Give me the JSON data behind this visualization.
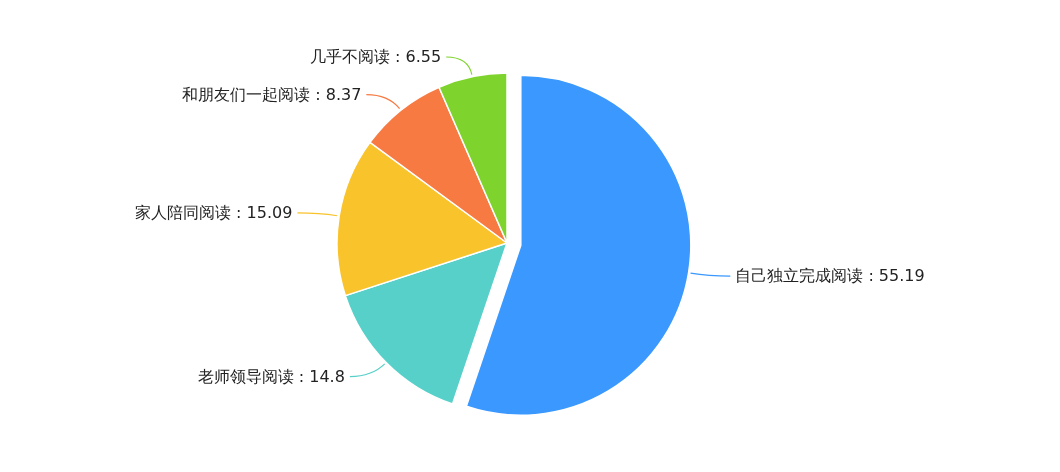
{
  "chart_data": {
    "type": "pie",
    "categories": [
      "自己独立完成阅读",
      "老师领导阅读",
      "家人陪同阅读",
      "和朋友们一起阅读",
      "几乎不阅读"
    ],
    "values": [
      55.19,
      14.8,
      15.09,
      8.37,
      6.55
    ],
    "colors": [
      "#3a98ff",
      "#57d0c9",
      "#f9c32c",
      "#f77a43",
      "#7ed42d"
    ],
    "value_labels": [
      ": 55.19",
      ": 14.8",
      ": 15.09",
      ": 8.37",
      ": 6.55"
    ]
  }
}
